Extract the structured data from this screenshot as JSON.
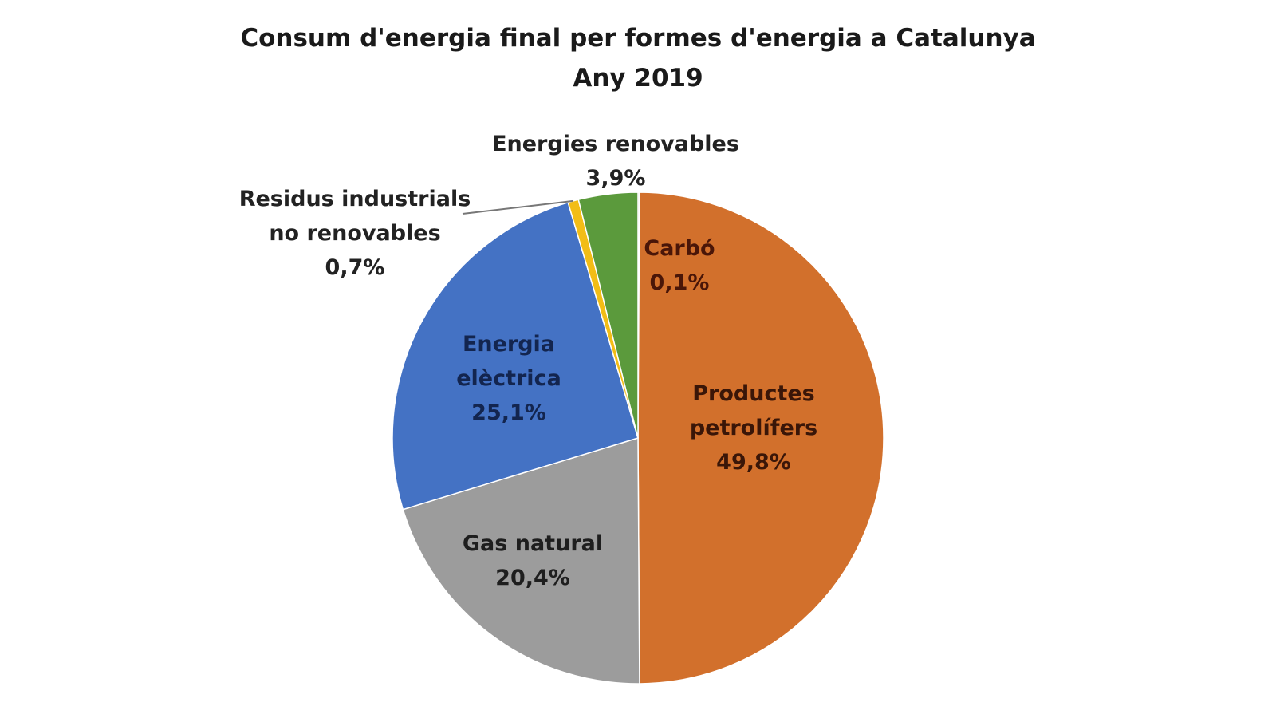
{
  "chart_data": {
    "type": "pie",
    "title": "Consum d'energia final per formes d'energia a Catalunya",
    "subtitle": "Any 2019",
    "start": "12 o'clock, clockwise",
    "slices": [
      {
        "label_lines": [
          "Carbó"
        ],
        "value": 0.1,
        "value_label": "0,1%",
        "color": "#c9bfa8",
        "text_color": "#4a1608"
      },
      {
        "label_lines": [
          "Productes",
          "petrolífers"
        ],
        "value": 49.8,
        "value_label": "49,8%",
        "color": "#d2702c",
        "text_color": "#3a1608"
      },
      {
        "label_lines": [
          "Gas natural"
        ],
        "value": 20.4,
        "value_label": "20,4%",
        "color": "#9c9c9c",
        "text_color": "#1e1e1e"
      },
      {
        "label_lines": [
          "Energia",
          "elèctrica"
        ],
        "value": 25.1,
        "value_label": "25,1%",
        "color": "#4472c4",
        "text_color": "#13254f"
      },
      {
        "label_lines": [
          "Residus industrials",
          "no renovables"
        ],
        "value": 0.7,
        "value_label": "0,7%",
        "color": "#f2bd16",
        "text_color": "#222222"
      },
      {
        "label_lines": [
          "Energies renovables"
        ],
        "value": 3.9,
        "value_label": "3,9%",
        "color": "#5b9a3c",
        "text_color": "#222222"
      }
    ]
  }
}
